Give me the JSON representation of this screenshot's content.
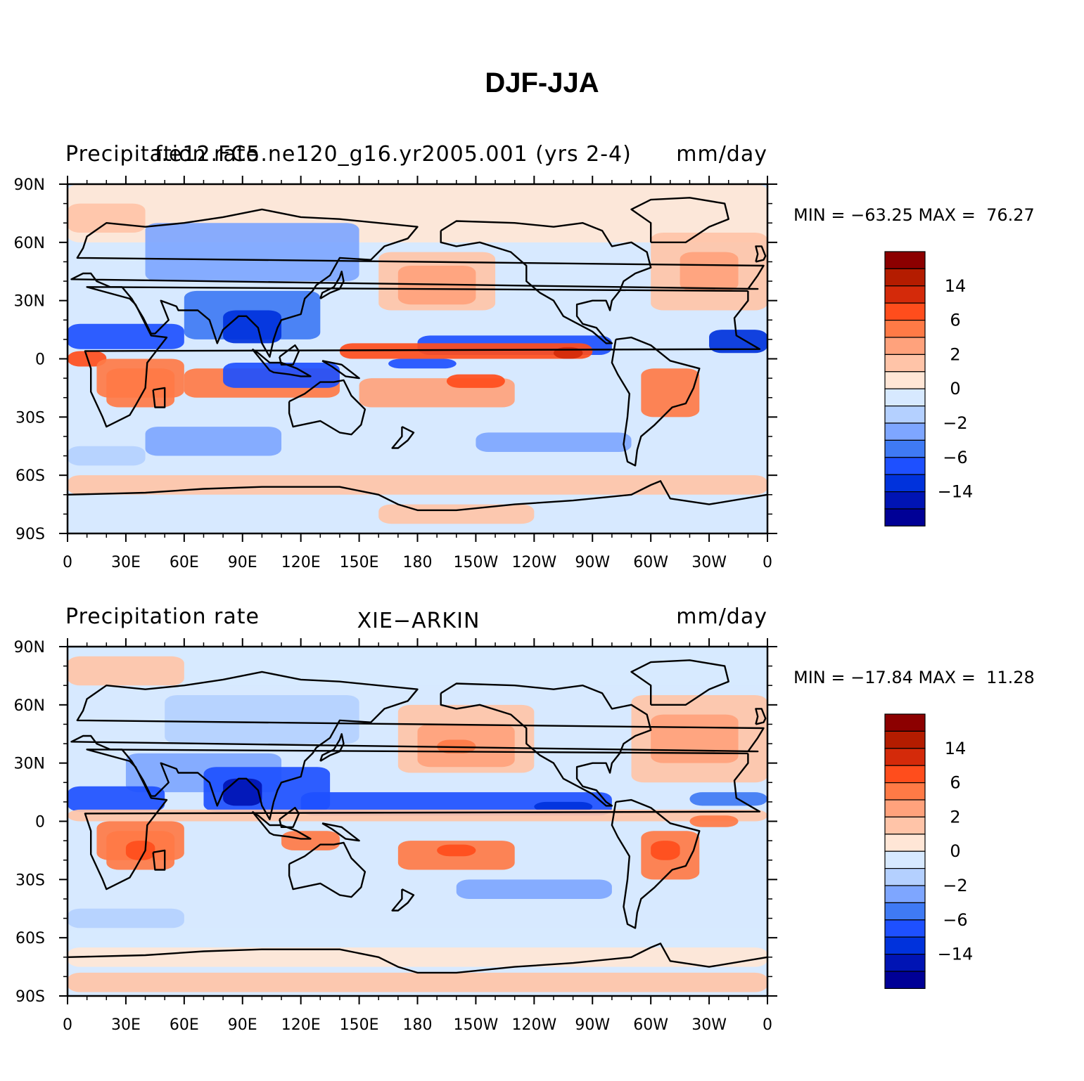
{
  "figure": {
    "title": "DJF-JJA"
  },
  "colors": {
    "levels": [
      "#000096",
      "#0014b4",
      "#0032dc",
      "#1e50ff",
      "#3f7af4",
      "#7ea6ff",
      "#b4d0ff",
      "#d7e9ff",
      "#ffe6d6",
      "#ffc4a8",
      "#ffa27c",
      "#ff7a46",
      "#ff4d1c",
      "#d42a0a",
      "#b41c00",
      "#8c0000"
    ],
    "coast": "#000000"
  },
  "chart_data": [
    {
      "type": "heatmap",
      "label_left": "Precipitation rate",
      "label_center": "f.e12.FC5.ne120_g16.yr2005.001 (yrs 2-4)",
      "label_right": "mm/day",
      "min_max_text": "MIN = −63.25 MAX =  76.27",
      "x_ticks": [
        "0",
        "30E",
        "60E",
        "90E",
        "120E",
        "150E",
        "180",
        "150W",
        "120W",
        "90W",
        "60W",
        "30W",
        "0"
      ],
      "y_ticks": [
        "90N",
        "60N",
        "30N",
        "0",
        "30S",
        "60S",
        "90S"
      ],
      "colorbar_labels": [
        "14",
        "6",
        "2",
        "0",
        "−2",
        "−6",
        "−14"
      ],
      "x_range_deg": [
        0,
        360
      ],
      "y_range_deg": [
        -90,
        90
      ]
    },
    {
      "type": "heatmap",
      "label_left": "Precipitation rate",
      "label_center": "XIE−ARKIN",
      "label_right": "mm/day",
      "min_max_text": "MIN = −17.84 MAX =  11.28",
      "x_ticks": [
        "0",
        "30E",
        "60E",
        "90E",
        "120E",
        "150E",
        "180",
        "150W",
        "120W",
        "90W",
        "60W",
        "30W",
        "0"
      ],
      "y_ticks": [
        "90N",
        "60N",
        "30N",
        "0",
        "30S",
        "60S",
        "90S"
      ],
      "colorbar_labels": [
        "14",
        "6",
        "2",
        "0",
        "−2",
        "−6",
        "−14"
      ],
      "x_range_deg": [
        0,
        360
      ],
      "y_range_deg": [
        -90,
        90
      ]
    }
  ]
}
